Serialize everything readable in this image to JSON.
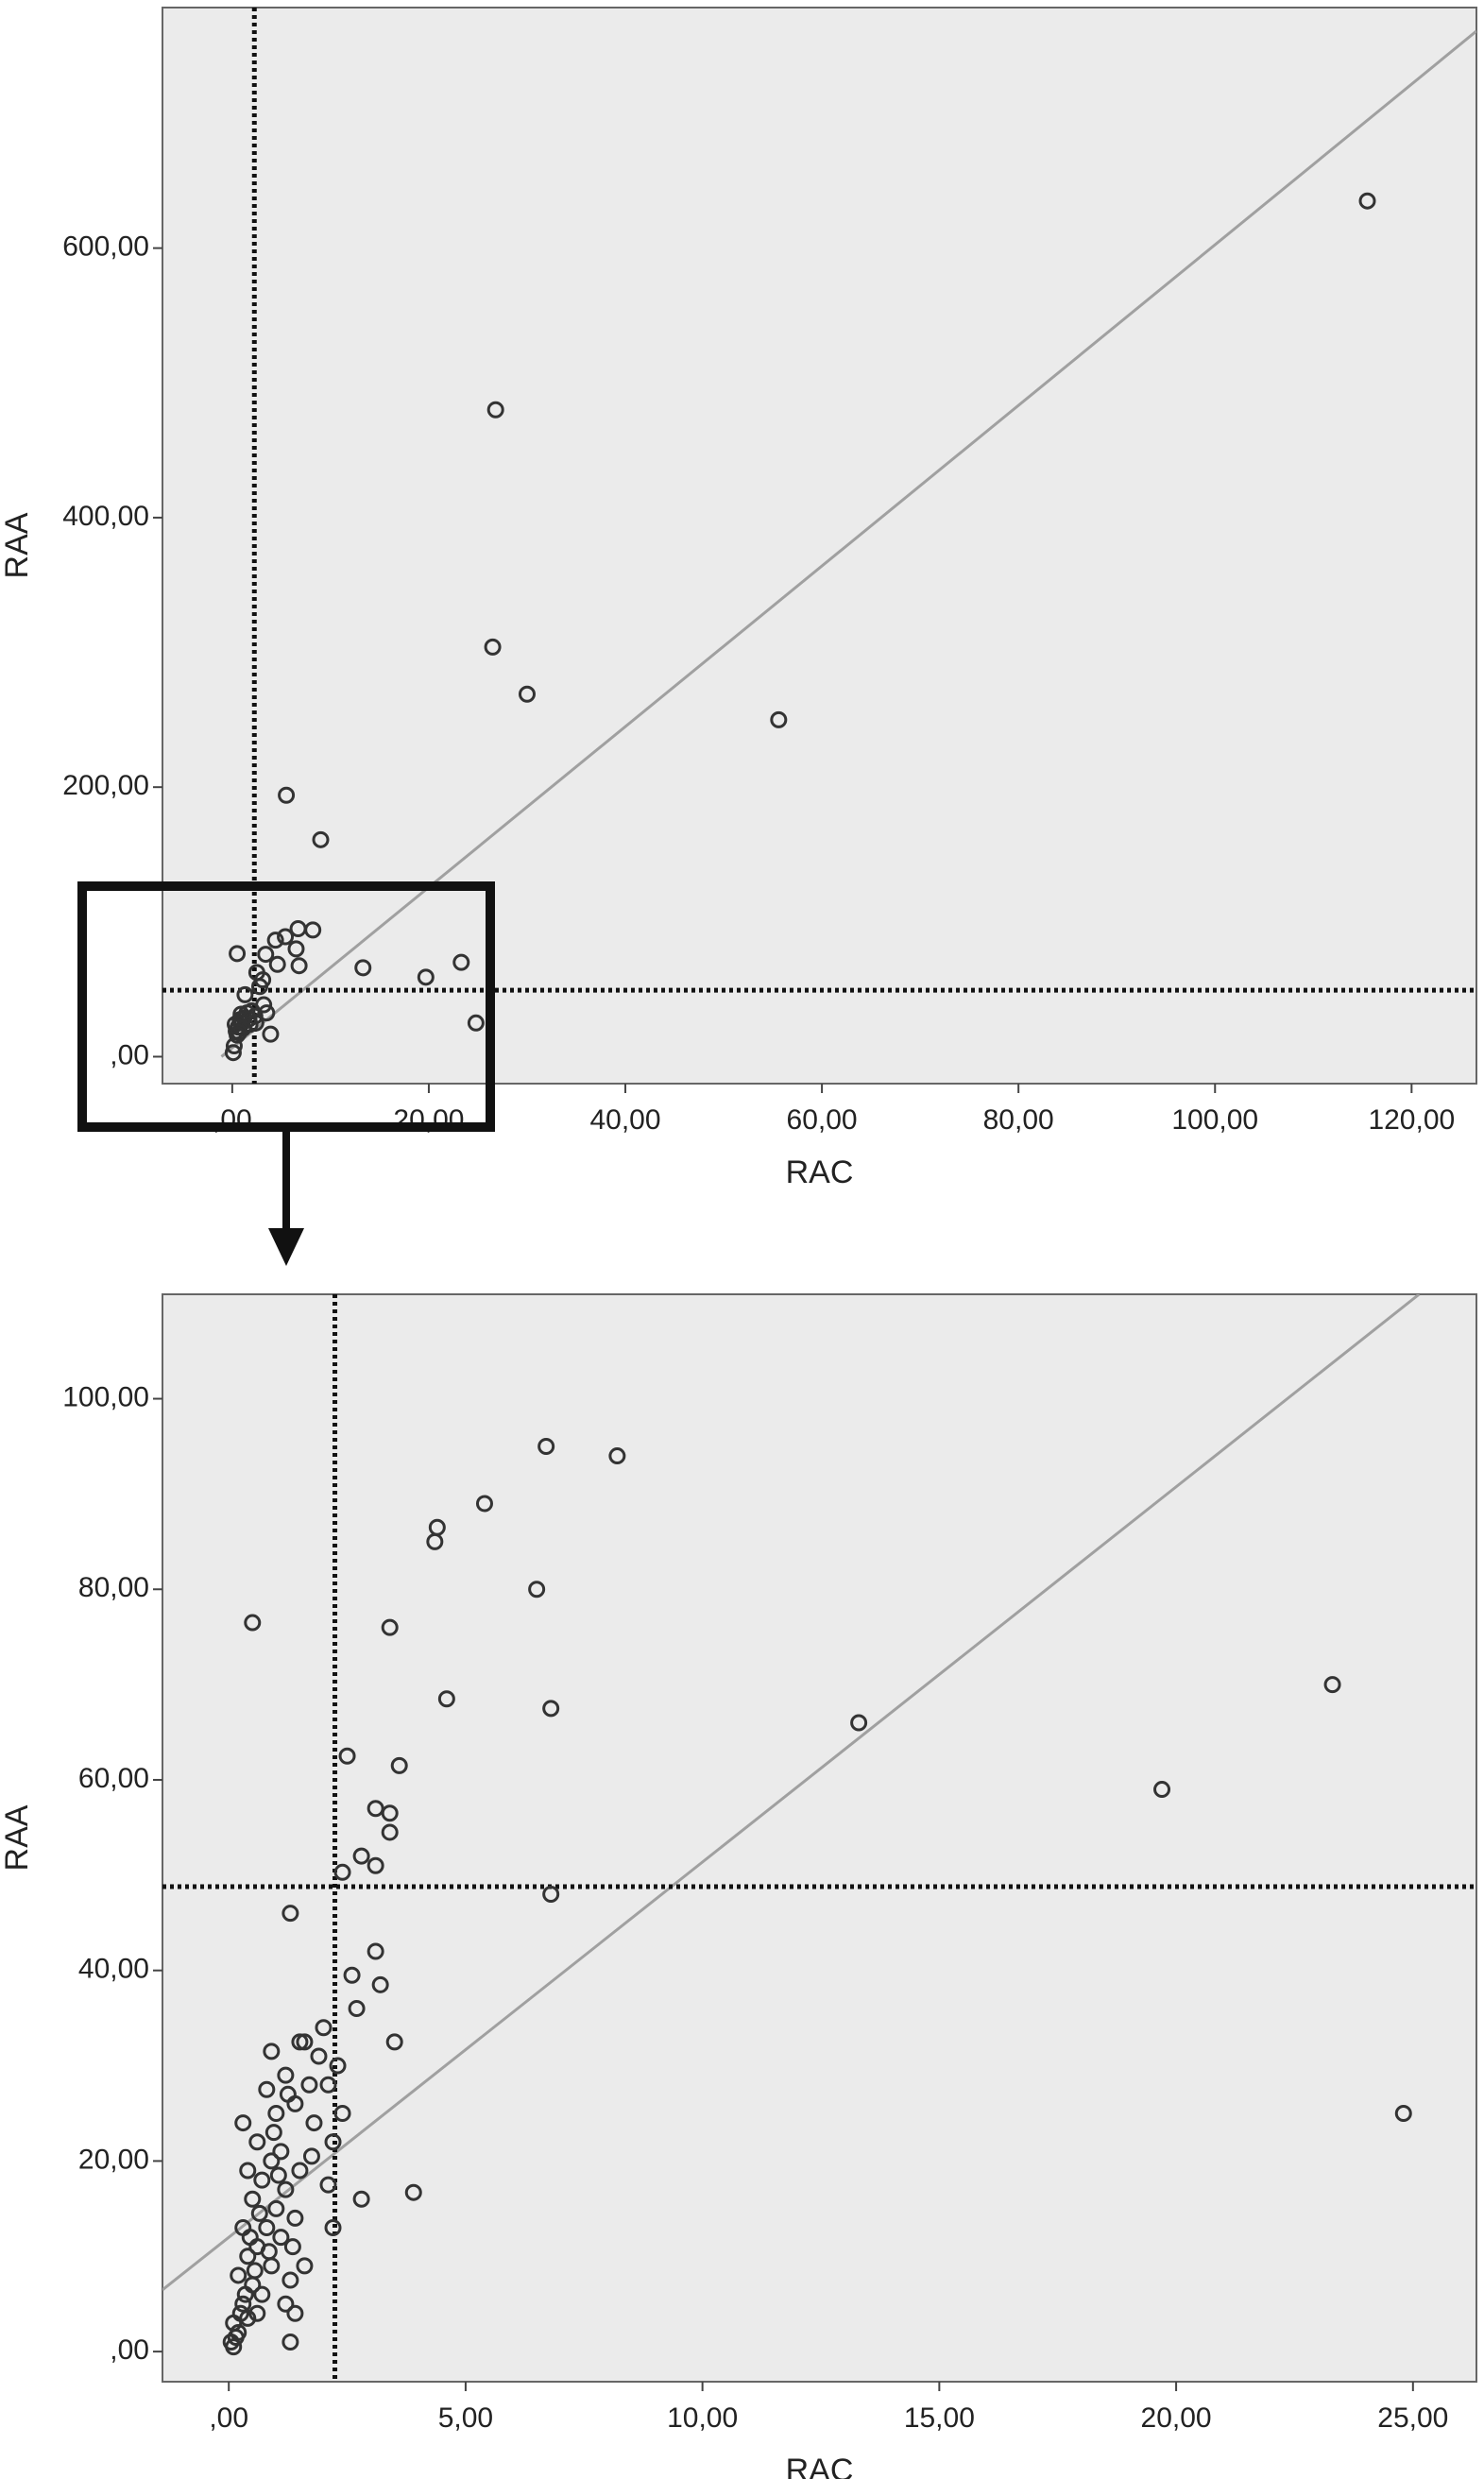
{
  "chart_data": [
    {
      "type": "scatter",
      "xlabel": "RAC",
      "ylabel": "RAA",
      "marker_color": "#333333",
      "background": "#ebebeb",
      "fit_color": "#a0a0a0",
      "xlim": [
        -7.1,
        126.6
      ],
      "ylim": [
        -20,
        778.5
      ],
      "xticks": [
        {
          "value": 0,
          "label": ",00"
        },
        {
          "value": 20,
          "label": "20,00"
        },
        {
          "value": 40,
          "label": "40,00"
        },
        {
          "value": 60,
          "label": "60,00"
        },
        {
          "value": 80,
          "label": "80,00"
        },
        {
          "value": 100,
          "label": "100,00"
        },
        {
          "value": 120,
          "label": "120,00"
        }
      ],
      "yticks": [
        {
          "value": 0,
          "label": ",00"
        },
        {
          "value": 200,
          "label": "200,00"
        },
        {
          "value": 400,
          "label": "400,00"
        },
        {
          "value": 600,
          "label": "600,00"
        }
      ],
      "vline": 2.25,
      "hline": 49.3,
      "fit_line": {
        "x": [
          -1.1,
          126.6
        ],
        "y": [
          0,
          761
        ]
      },
      "x": [
        115.5,
        26.8,
        26.5,
        30,
        55.6,
        5.5,
        9,
        6.7,
        8.2,
        5.4,
        4.4,
        6.5,
        0.5,
        3.4,
        4.6,
        6.8,
        13.3,
        23.3,
        19.7,
        2.5,
        3.1,
        2.8,
        1.3,
        3.2,
        3.5,
        24.8,
        3.9,
        2,
        1.5,
        0.9,
        2.3,
        1.2,
        0.8,
        1.7,
        0.3,
        1,
        2.4,
        1.8,
        0.6,
        1.1,
        0.4,
        0.7,
        0.5,
        0.2,
        0.1
      ],
      "values": [
        635,
        480,
        304,
        269,
        250,
        194,
        161,
        95,
        94,
        89,
        86.5,
        80,
        76.5,
        76,
        68.5,
        67.5,
        66,
        70,
        59,
        62.5,
        57,
        52,
        46,
        38.5,
        32.5,
        25,
        16.7,
        34,
        32.5,
        31.5,
        30,
        29,
        27.5,
        28,
        24,
        25,
        25,
        24,
        22,
        21,
        19,
        18,
        16,
        8,
        3
      ]
    },
    {
      "type": "scatter",
      "xlabel": "RAC",
      "ylabel": "RAA",
      "marker_color": "#333333",
      "background": "#ebebeb",
      "fit_color": "#a0a0a0",
      "xlim": [
        -1.4,
        26.34
      ],
      "ylim": [
        -3.16,
        110.96
      ],
      "xticks": [
        {
          "value": 0,
          "label": ",00"
        },
        {
          "value": 5,
          "label": "5,00"
        },
        {
          "value": 10,
          "label": "10,00"
        },
        {
          "value": 15,
          "label": "15,00"
        },
        {
          "value": 20,
          "label": "20,00"
        },
        {
          "value": 25,
          "label": "25,00"
        }
      ],
      "yticks": [
        {
          "value": 0,
          "label": ",00"
        },
        {
          "value": 20,
          "label": "20,00"
        },
        {
          "value": 40,
          "label": "40,00"
        },
        {
          "value": 60,
          "label": "60,00"
        },
        {
          "value": 80,
          "label": "80,00"
        },
        {
          "value": 100,
          "label": "100,00"
        }
      ],
      "vline": 2.24,
      "hline": 48.8,
      "fit_line": {
        "x": [
          -1.4,
          25.13
        ],
        "y": [
          6.48,
          110.96
        ]
      },
      "x": [
        6.7,
        8.2,
        5.4,
        4.4,
        4.35,
        6.5,
        0.5,
        3.4,
        4.6,
        6.8,
        13.3,
        23.3,
        19.7,
        2.5,
        3.6,
        3.1,
        3.4,
        3.4,
        2.8,
        3.1,
        2.4,
        6.8,
        1.3,
        3.1,
        3.2,
        2.6,
        2.7,
        3.5,
        24.8,
        2.8,
        3.9,
        1.3,
        2,
        1.6,
        1.5,
        0.9,
        2.3,
        1.9,
        1.2,
        0.8,
        1.7,
        2.1,
        0.3,
        1,
        1.4,
        2.4,
        1.8,
        2.2,
        0.6,
        1.1,
        0.9,
        1.5,
        0.4,
        0.7,
        1.2,
        2.1,
        0.5,
        1,
        1.4,
        0.3,
        0.8,
        1.1,
        0.6,
        0.4,
        0.9,
        0.2,
        0.5,
        0.7,
        1.2,
        0.3,
        0.1,
        0.2,
        0.05,
        0.1,
        0.4,
        0.6,
        1.4,
        1.6,
        2.2,
        1.3,
        0.15,
        0.35,
        0.55,
        0.85,
        1.05,
        1.75,
        0.95,
        1.25,
        0.65,
        0.25,
        0.45,
        1.35
      ],
      "values": [
        95,
        94,
        89,
        86.5,
        85,
        80,
        76.5,
        76,
        68.5,
        67.5,
        66,
        70,
        59,
        62.5,
        61.5,
        57,
        56.5,
        54.5,
        52,
        51,
        50.3,
        48,
        46,
        42,
        38.5,
        39.5,
        36,
        32.5,
        25,
        16,
        16.7,
        1,
        34,
        32.5,
        32.5,
        31.5,
        30,
        31,
        29,
        27.5,
        28,
        28,
        24,
        25,
        26,
        25,
        24,
        22,
        22,
        21,
        20,
        19,
        19,
        18,
        17,
        17.5,
        16,
        15,
        14,
        13,
        13,
        12,
        11,
        10,
        9,
        8,
        7,
        6,
        5,
        5,
        3,
        2,
        1,
        0.5,
        3.5,
        4,
        4,
        9,
        13,
        7.5,
        1.5,
        6,
        8.5,
        10.5,
        18.5,
        20.5,
        23,
        27,
        14.5,
        4,
        12,
        11
      ]
    }
  ]
}
